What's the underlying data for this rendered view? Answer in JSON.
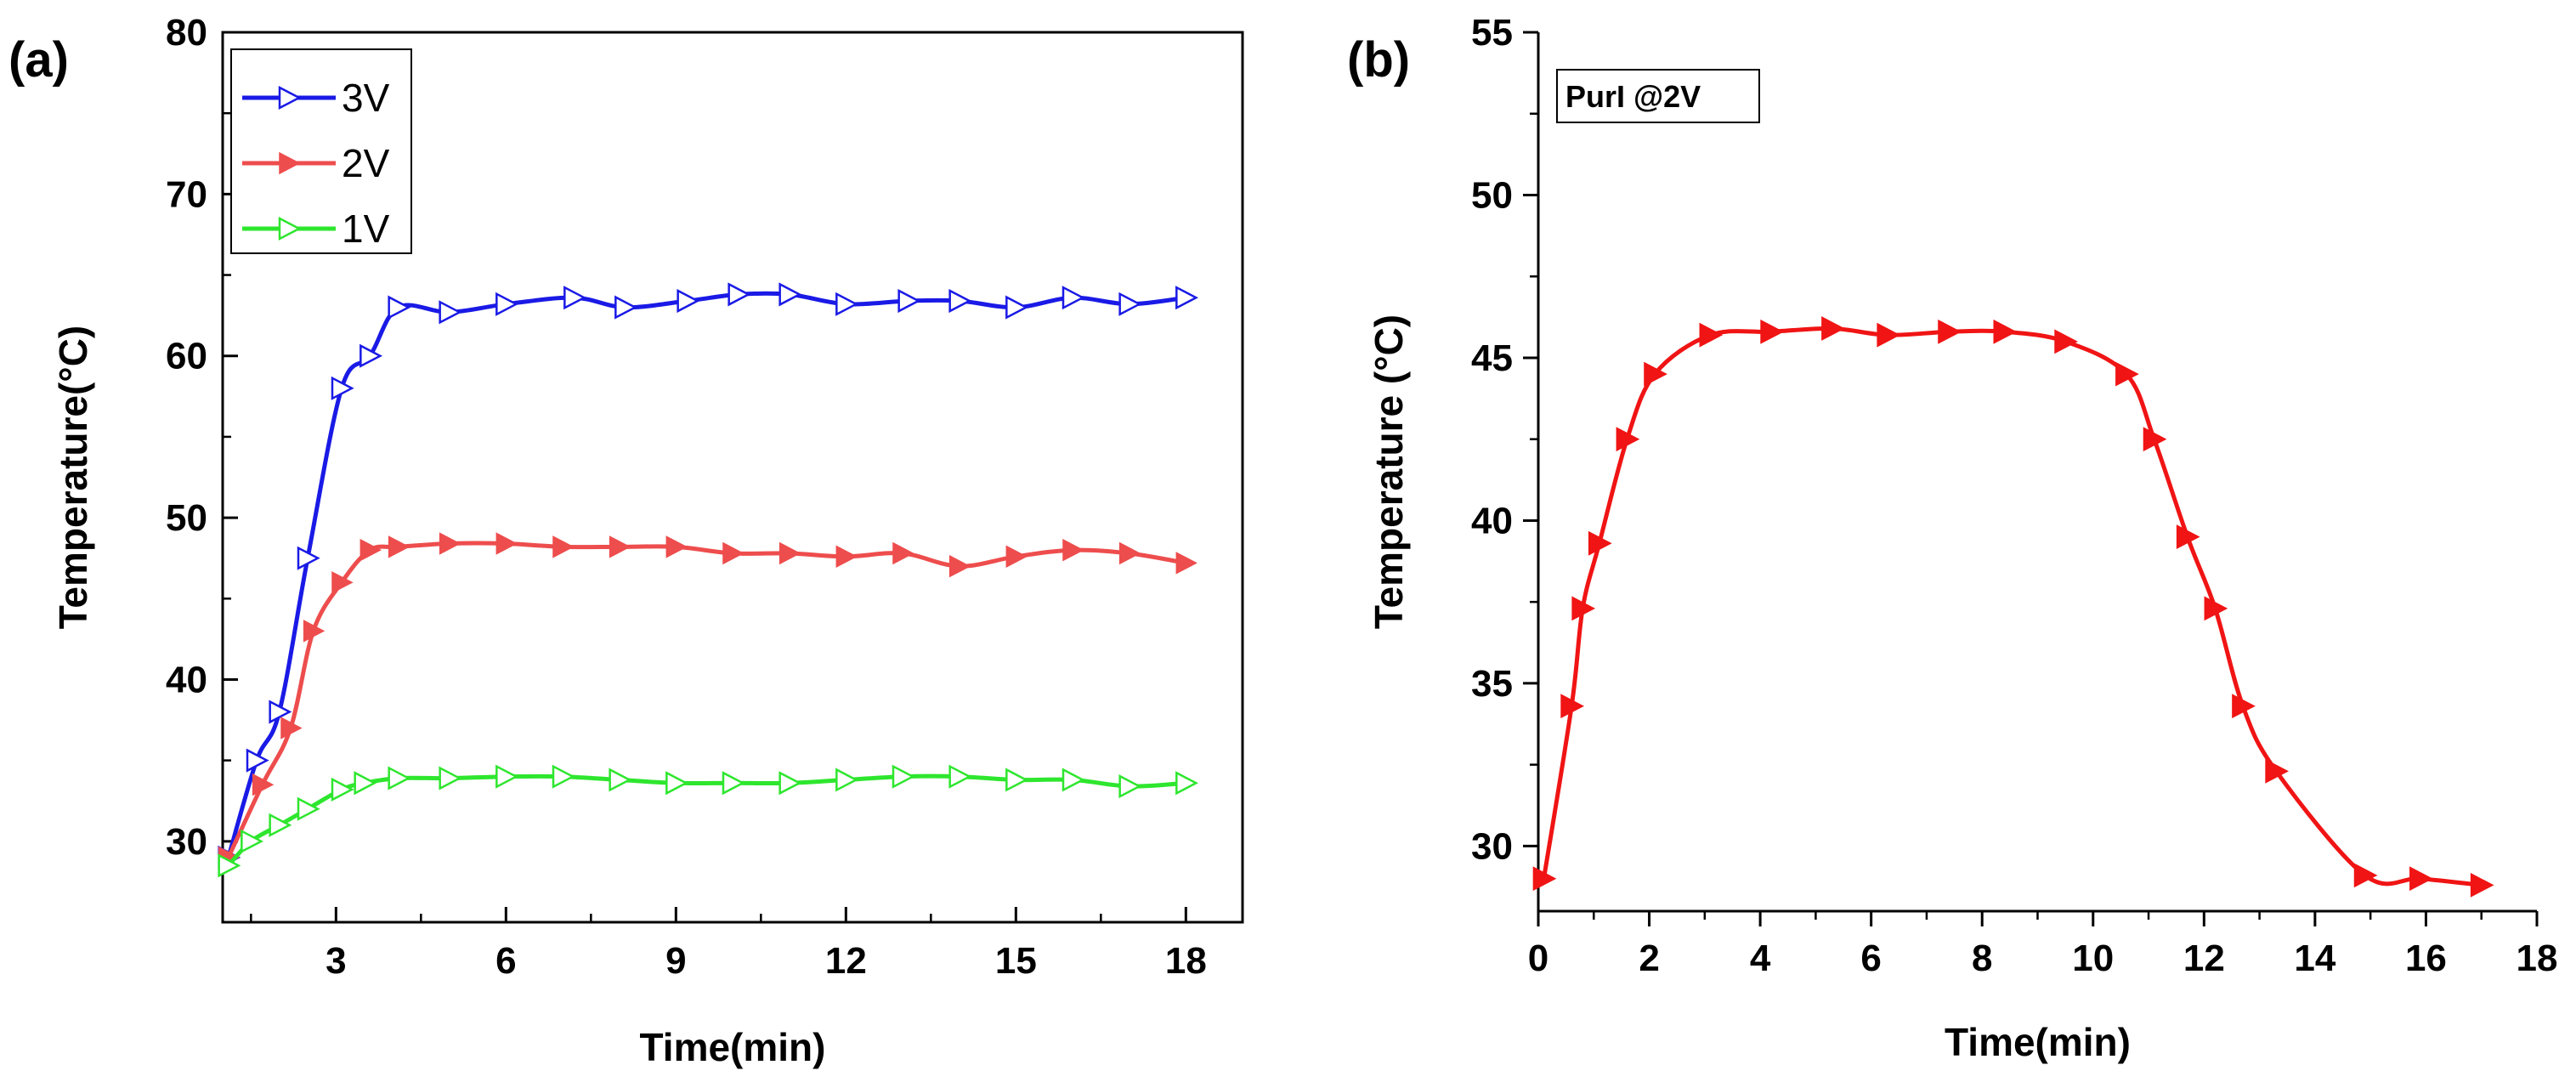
{
  "chart_data": [
    {
      "panel": "(a)",
      "type": "line",
      "xlabel": "Time(min)",
      "ylabel": "Temperature(°C)",
      "xlim": [
        1,
        19
      ],
      "ylim": [
        25,
        80
      ],
      "xticks": [
        3,
        6,
        9,
        12,
        15,
        18
      ],
      "yticks": [
        30,
        40,
        50,
        60,
        70,
        80
      ],
      "legend_position": "top-left",
      "grid": false,
      "series": [
        {
          "name": "3V",
          "color": "#1a1ae6",
          "marker": "open-right-triangle",
          "x": [
            1.1,
            1.6,
            2.0,
            2.5,
            3.1,
            3.6,
            4.1,
            5.0,
            6.0,
            7.2,
            8.1,
            9.2,
            10.1,
            11.0,
            12.0,
            13.1,
            14.0,
            15.0,
            16.0,
            17.0,
            18.0
          ],
          "y": [
            29.0,
            35.0,
            38.0,
            47.5,
            58.0,
            60.0,
            63.0,
            62.7,
            63.2,
            63.6,
            63.0,
            63.4,
            63.8,
            63.8,
            63.2,
            63.4,
            63.4,
            63.0,
            63.6,
            63.2,
            63.6
          ]
        },
        {
          "name": "2V",
          "color": "#ee4d4d",
          "marker": "filled-right-triangle",
          "x": [
            1.1,
            1.7,
            2.2,
            2.6,
            3.1,
            3.6,
            4.1,
            5.0,
            6.0,
            7.0,
            8.0,
            9.0,
            10.0,
            11.0,
            12.0,
            13.0,
            14.0,
            15.0,
            16.0,
            17.0,
            18.0
          ],
          "y": [
            29.0,
            33.5,
            37.0,
            43.0,
            46.0,
            48.0,
            48.2,
            48.4,
            48.4,
            48.2,
            48.2,
            48.2,
            47.8,
            47.8,
            47.6,
            47.8,
            47.0,
            47.6,
            48.0,
            47.8,
            47.2
          ]
        },
        {
          "name": "1V",
          "color": "#2ee62e",
          "marker": "open-right-triangle",
          "x": [
            1.1,
            1.5,
            2.0,
            2.5,
            3.1,
            3.5,
            4.1,
            5.0,
            6.0,
            7.0,
            8.0,
            9.0,
            10.0,
            11.0,
            12.0,
            13.0,
            14.0,
            15.0,
            16.0,
            17.0,
            18.0
          ],
          "y": [
            28.5,
            30.0,
            31.0,
            32.0,
            33.2,
            33.6,
            33.9,
            33.9,
            34.0,
            34.0,
            33.8,
            33.6,
            33.6,
            33.6,
            33.8,
            34.0,
            34.0,
            33.8,
            33.8,
            33.4,
            33.6
          ]
        }
      ]
    },
    {
      "panel": "(b)",
      "type": "line",
      "xlabel": "Time(min)",
      "ylabel": "Temperature (°C)",
      "xlim": [
        0,
        18
      ],
      "ylim": [
        28,
        55
      ],
      "xticks": [
        0,
        2,
        4,
        6,
        8,
        10,
        12,
        14,
        16,
        18
      ],
      "yticks": [
        30,
        35,
        40,
        45,
        50,
        55
      ],
      "annotation": "PurI @2V",
      "annotation_position": "top-left",
      "grid": false,
      "series": [
        {
          "name": "PurI @2V",
          "color": "#f01414",
          "marker": "filled-right-triangle",
          "x": [
            0.1,
            0.6,
            0.8,
            1.1,
            1.6,
            2.1,
            3.1,
            4.2,
            5.3,
            6.3,
            7.4,
            8.4,
            9.5,
            10.6,
            11.1,
            11.7,
            12.2,
            12.7,
            13.3,
            14.9,
            15.9,
            17.0
          ],
          "y": [
            29.0,
            34.3,
            37.3,
            39.3,
            42.5,
            44.5,
            45.7,
            45.8,
            45.9,
            45.7,
            45.8,
            45.8,
            45.5,
            44.5,
            42.5,
            39.5,
            37.3,
            34.3,
            32.3,
            29.1,
            29.0,
            28.8
          ]
        }
      ]
    }
  ]
}
